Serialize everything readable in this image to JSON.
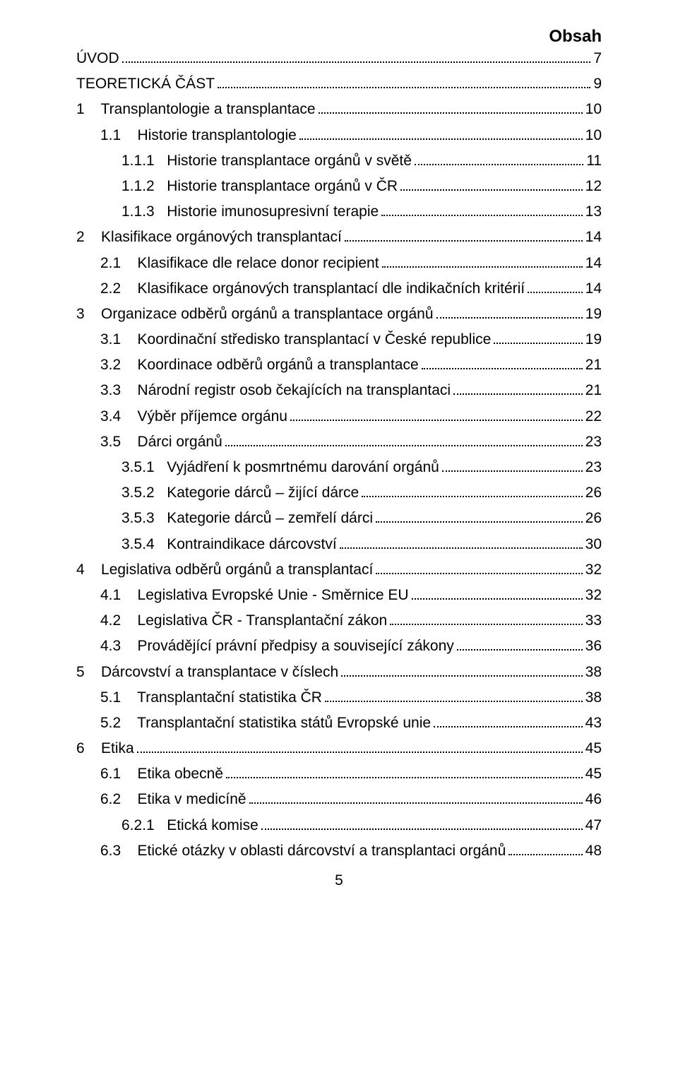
{
  "title": "Obsah",
  "pageNumber": "5",
  "entries": [
    {
      "indent": 0,
      "num": "",
      "label": "ÚVOD",
      "page": "7"
    },
    {
      "indent": 0,
      "num": "",
      "label": "TEORETICKÁ ČÁST",
      "page": "9"
    },
    {
      "indent": 0,
      "num": "1",
      "label": "Transplantologie a transplantace",
      "page": "10"
    },
    {
      "indent": 1,
      "num": "1.1",
      "label": "Historie transplantologie",
      "page": "10"
    },
    {
      "indent": 2,
      "num": "1.1.1",
      "label": "Historie transplantace orgánů v světě",
      "page": "11"
    },
    {
      "indent": 2,
      "num": "1.1.2",
      "label": "Historie transplantace orgánů v ČR",
      "page": "12"
    },
    {
      "indent": 2,
      "num": "1.1.3",
      "label": "Historie imunosupresivní terapie",
      "page": "13"
    },
    {
      "indent": 0,
      "num": "2",
      "label": "Klasifikace orgánových transplantací",
      "page": "14"
    },
    {
      "indent": 1,
      "num": "2.1",
      "label": "Klasifikace dle relace donor recipient",
      "page": "14"
    },
    {
      "indent": 1,
      "num": "2.2",
      "label": "Klasifikace orgánových transplantací dle indikačních kritérií",
      "page": "14"
    },
    {
      "indent": 0,
      "num": "3",
      "label": "Organizace odběrů orgánů a transplantace orgánů",
      "page": "19"
    },
    {
      "indent": 1,
      "num": "3.1",
      "label": "Koordinační středisko transplantací v České republice",
      "page": "19"
    },
    {
      "indent": 1,
      "num": "3.2",
      "label": "Koordinace odběrů orgánů a transplantace",
      "page": "21"
    },
    {
      "indent": 1,
      "num": "3.3",
      "label": "Národní registr osob čekajících na transplantaci",
      "page": "21"
    },
    {
      "indent": 1,
      "num": "3.4",
      "label": "Výběr příjemce orgánu",
      "page": "22"
    },
    {
      "indent": 1,
      "num": "3.5",
      "label": "Dárci orgánů",
      "page": "23"
    },
    {
      "indent": 2,
      "num": "3.5.1",
      "label": "Vyjádření k posmrtnému darování orgánů",
      "page": "23"
    },
    {
      "indent": 2,
      "num": "3.5.2",
      "label": "Kategorie dárců – žijící dárce",
      "page": "26"
    },
    {
      "indent": 2,
      "num": "3.5.3",
      "label": "Kategorie dárců – zemřelí dárci",
      "page": "26"
    },
    {
      "indent": 2,
      "num": "3.5.4",
      "label": "Kontraindikace dárcovství",
      "page": "30"
    },
    {
      "indent": 0,
      "num": "4",
      "label": "Legislativa odběrů orgánů a transplantací",
      "page": "32"
    },
    {
      "indent": 1,
      "num": "4.1",
      "label": "Legislativa Evropské Unie - Směrnice EU",
      "page": "32"
    },
    {
      "indent": 1,
      "num": "4.2",
      "label": "Legislativa ČR - Transplantační zákon",
      "page": "33"
    },
    {
      "indent": 1,
      "num": "4.3",
      "label": "Provádějící právní předpisy a související zákony",
      "page": "36"
    },
    {
      "indent": 0,
      "num": "5",
      "label": "Dárcovství a transplantace v číslech",
      "page": "38"
    },
    {
      "indent": 1,
      "num": "5.1",
      "label": "Transplantační statistika ČR",
      "page": "38"
    },
    {
      "indent": 1,
      "num": "5.2",
      "label": "Transplantační statistika států Evropské unie",
      "page": "43"
    },
    {
      "indent": 0,
      "num": "6",
      "label": "Etika",
      "page": "45"
    },
    {
      "indent": 1,
      "num": "6.1",
      "label": "Etika obecně",
      "page": "45"
    },
    {
      "indent": 1,
      "num": "6.2",
      "label": "Etika v medicíně",
      "page": "46"
    },
    {
      "indent": 2,
      "num": "6.2.1",
      "label": "Etická komise",
      "page": "47"
    },
    {
      "indent": 1,
      "num": "6.3",
      "label": "Etické otázky v oblasti dárcovství a transplantaci orgánů",
      "page": "48"
    }
  ]
}
